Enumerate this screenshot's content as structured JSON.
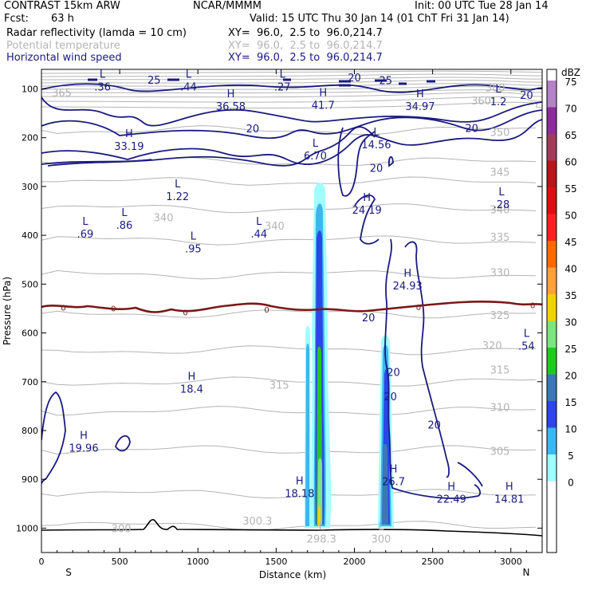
{
  "header": {
    "model": "CONTRAST 15km ARW",
    "center": "NCAR/MMMM",
    "init": "Init: 00 UTC Tue 28 Jan 14",
    "fcst_label": "Fcst:",
    "fcst_value": "63 h",
    "valid": "Valid: 15 UTC Thu 30 Jan 14 (01 ChT Fri 31 Jan 14)",
    "fields": [
      {
        "name": "Radar reflectivity (lamda = 10 cm)",
        "xy": "XY=  96.0,  2.5 to  96.0,214.7",
        "color": "#000000"
      },
      {
        "name": "Potential temperature",
        "xy": "XY=  96.0,  2.5 to  96.0,214.7",
        "color": "#b4b4b4"
      },
      {
        "name": "Horizontal wind speed",
        "xy": "XY=  96.0,  2.5 to  96.0,214.7",
        "color": "#1a1a80"
      }
    ]
  },
  "chart_data": {
    "type": "contour",
    "xlabel": "Distance (km)",
    "ylabel": "Pressure (hPa)",
    "xlim": [
      0,
      3200
    ],
    "ylim": [
      1050,
      60
    ],
    "x_ticks": [
      0,
      500,
      1000,
      1500,
      2000,
      2500,
      3000
    ],
    "y_ticks": [
      100,
      200,
      300,
      400,
      500,
      600,
      700,
      800,
      900,
      1000
    ],
    "x_end_labels": {
      "left": "S",
      "right": "N"
    },
    "colorbar": {
      "unit": "dBZ",
      "levels": [
        0,
        5,
        10,
        15,
        20,
        25,
        30,
        35,
        40,
        45,
        50,
        55,
        60,
        65,
        70,
        75
      ],
      "colors": [
        "#ffffff",
        "#9ffdfd",
        "#3cb6f0",
        "#2c46e8",
        "#3a78b8",
        "#22c822",
        "#7de57d",
        "#f2d200",
        "#ffa040",
        "#ff6a00",
        "#ff2020",
        "#dd1010",
        "#b41818",
        "#a03c5a",
        "#8c2c9a",
        "#b482c8"
      ]
    },
    "theta_labels": [
      {
        "text": "365",
        "x": 130,
        "p": 107
      },
      {
        "text": "380",
        "x": 2900,
        "p": 97
      },
      {
        "text": "360",
        "x": 2810,
        "p": 124
      },
      {
        "text": "350",
        "x": 2930,
        "p": 188
      },
      {
        "text": "345",
        "x": 2930,
        "p": 270
      },
      {
        "text": "340",
        "x": 780,
        "p": 363
      },
      {
        "text": "340",
        "x": 1490,
        "p": 380
      },
      {
        "text": "340",
        "x": 2930,
        "p": 347
      },
      {
        "text": "335",
        "x": 2930,
        "p": 403
      },
      {
        "text": "330",
        "x": 2930,
        "p": 476
      },
      {
        "text": "325",
        "x": 2930,
        "p": 563
      },
      {
        "text": "320",
        "x": 2880,
        "p": 625
      },
      {
        "text": "315",
        "x": 1520,
        "p": 706
      },
      {
        "text": "315",
        "x": 2930,
        "p": 675
      },
      {
        "text": "310",
        "x": 2930,
        "p": 752
      },
      {
        "text": "305",
        "x": 2930,
        "p": 842
      },
      {
        "text": "300",
        "x": 510,
        "p": 1000
      },
      {
        "text": "300.3",
        "x": 1380,
        "p": 985
      }
    ],
    "wind_labels": [
      {
        "text": "20",
        "x": 2000,
        "p": 76
      },
      {
        "text": "25",
        "x": 2200,
        "p": 82
      },
      {
        "text": "25",
        "x": 720,
        "p": 81
      },
      {
        "text": "20",
        "x": 3100,
        "p": 112
      },
      {
        "text": "20",
        "x": 2750,
        "p": 180
      },
      {
        "text": "20",
        "x": 1350,
        "p": 181
      },
      {
        "text": "20",
        "x": 2140,
        "p": 262
      },
      {
        "text": "20",
        "x": 2090,
        "p": 568
      },
      {
        "text": "20",
        "x": 2250,
        "p": 680
      },
      {
        "text": "20",
        "x": 2230,
        "p": 730
      },
      {
        "text": "20",
        "x": 2510,
        "p": 788
      },
      {
        "text": "0",
        "x": 140,
        "p": 546
      },
      {
        "text": "0",
        "x": 460,
        "p": 548
      },
      {
        "text": "0",
        "x": 920,
        "p": 556
      },
      {
        "text": "0",
        "x": 1440,
        "p": 550
      },
      {
        "text": "0",
        "x": 2410,
        "p": 545
      },
      {
        "text": "0",
        "x": 3140,
        "p": 541
      }
    ],
    "extrema": [
      {
        "type": "L",
        "value": ".36",
        "x": 390,
        "p": 84
      },
      {
        "type": "L",
        "value": ".44",
        "x": 940,
        "p": 84
      },
      {
        "type": "L",
        "value": ".27",
        "x": 1540,
        "p": 84
      },
      {
        "type": "L",
        "value": "1.2",
        "x": 2920,
        "p": 114
      },
      {
        "type": "H",
        "value": "36.58",
        "x": 1210,
        "p": 124
      },
      {
        "type": "H",
        "value": "41.7",
        "x": 1800,
        "p": 121
      },
      {
        "type": "H",
        "value": "34.97",
        "x": 2420,
        "p": 124
      },
      {
        "type": "H",
        "value": "33.19",
        "x": 560,
        "p": 205
      },
      {
        "type": "L",
        "value": "6.70",
        "x": 1750,
        "p": 225
      },
      {
        "type": "L",
        "value": "14.56",
        "x": 2140,
        "p": 202
      },
      {
        "type": "L",
        "value": "1.22",
        "x": 870,
        "p": 308
      },
      {
        "type": "L",
        "value": ".86",
        "x": 530,
        "p": 367
      },
      {
        "type": "L",
        "value": ".69",
        "x": 280,
        "p": 385
      },
      {
        "type": "L",
        "value": ".95",
        "x": 970,
        "p": 415
      },
      {
        "type": "L",
        "value": ".44",
        "x": 1390,
        "p": 385
      },
      {
        "type": "H",
        "value": "24.19",
        "x": 2080,
        "p": 336
      },
      {
        "type": "L",
        "value": ".28",
        "x": 2940,
        "p": 325
      },
      {
        "type": "H",
        "value": "24.93",
        "x": 2340,
        "p": 491
      },
      {
        "type": "L",
        "value": ".54",
        "x": 3100,
        "p": 615
      },
      {
        "type": "H",
        "value": "18.4",
        "x": 960,
        "p": 703
      },
      {
        "type": "H",
        "value": "19.96",
        "x": 270,
        "p": 824
      },
      {
        "type": "H",
        "value": "18.18",
        "x": 1650,
        "p": 917
      },
      {
        "type": "H",
        "value": "26.7",
        "x": 2250,
        "p": 892
      },
      {
        "type": "H",
        "value": "22.49",
        "x": 2620,
        "p": 928
      },
      {
        "type": "H",
        "value": "14.81",
        "x": 2990,
        "p": 928
      },
      {
        "type": "L",
        "value": "298.3",
        "x": 1790,
        "p": 1010
      },
      {
        "type": "L",
        "value": "300",
        "x": 2170,
        "p": 1010
      }
    ]
  }
}
